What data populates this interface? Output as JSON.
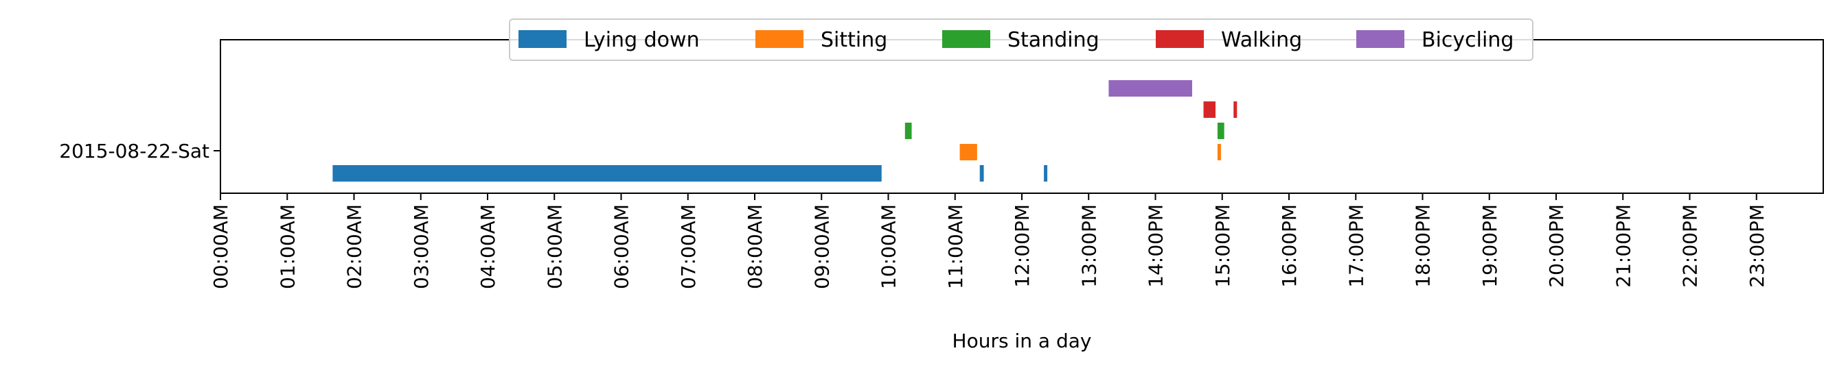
{
  "chart_data": {
    "type": "bar",
    "orientation": "horizontal",
    "title": "",
    "xlabel": "Hours in a day",
    "ylabel": "",
    "xlim": [
      0,
      24
    ],
    "y_categories": [
      "2015-08-22-Sat"
    ],
    "x_ticks": [
      0,
      1,
      2,
      3,
      4,
      5,
      6,
      7,
      8,
      9,
      10,
      11,
      12,
      13,
      14,
      15,
      16,
      17,
      18,
      19,
      20,
      21,
      22,
      23
    ],
    "x_tick_labels": [
      "00:00AM",
      "01:00AM",
      "02:00AM",
      "03:00AM",
      "04:00AM",
      "05:00AM",
      "06:00AM",
      "07:00AM",
      "08:00AM",
      "09:00AM",
      "10:00AM",
      "11:00AM",
      "12:00PM",
      "13:00PM",
      "14:00PM",
      "15:00PM",
      "16:00PM",
      "17:00PM",
      "18:00PM",
      "19:00PM",
      "20:00PM",
      "21:00PM",
      "22:00PM",
      "23:00PM"
    ],
    "grid": false,
    "legend_position": "top-center",
    "series": [
      {
        "name": "Lying down",
        "color": "#1f77b4",
        "segments": [
          {
            "start": 1.68,
            "end": 9.9
          },
          {
            "start": 11.37,
            "end": 11.43
          },
          {
            "start": 12.33,
            "end": 12.37
          }
        ]
      },
      {
        "name": "Sitting",
        "color": "#ff7f0e",
        "segments": [
          {
            "start": 11.07,
            "end": 11.33
          },
          {
            "start": 14.93,
            "end": 14.97
          }
        ]
      },
      {
        "name": "Standing",
        "color": "#2ca02c",
        "segments": [
          {
            "start": 10.25,
            "end": 10.35
          },
          {
            "start": 14.93,
            "end": 15.03
          }
        ]
      },
      {
        "name": "Walking",
        "color": "#d62728",
        "segments": [
          {
            "start": 14.72,
            "end": 14.9
          },
          {
            "start": 15.17,
            "end": 15.22
          }
        ]
      },
      {
        "name": "Bicycling",
        "color": "#9467bd",
        "segments": [
          {
            "start": 13.3,
            "end": 14.55
          }
        ]
      }
    ]
  }
}
